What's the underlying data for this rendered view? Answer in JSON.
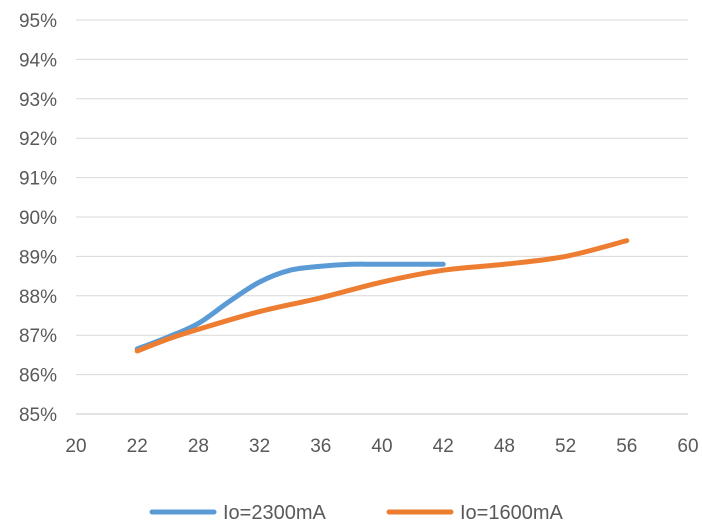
{
  "chart_data": {
    "type": "line",
    "categories": [
      "20",
      "22",
      "28",
      "32",
      "36",
      "40",
      "42",
      "48",
      "52",
      "56",
      "60"
    ],
    "ylim": [
      85,
      95
    ],
    "yticks": [
      "85%",
      "86%",
      "87%",
      "88%",
      "89%",
      "90%",
      "91%",
      "92%",
      "93%",
      "94%",
      "95%"
    ],
    "grid": true,
    "legend": "bottom",
    "series": [
      {
        "name": "Io=2300mA",
        "color": "#5B9BD5",
        "points": [
          [
            1,
            86.65
          ],
          [
            1.5,
            86.95
          ],
          [
            2,
            87.3
          ],
          [
            2.5,
            87.85
          ],
          [
            3,
            88.35
          ],
          [
            3.5,
            88.65
          ],
          [
            4,
            88.75
          ],
          [
            4.5,
            88.8
          ],
          [
            5,
            88.8
          ],
          [
            6,
            88.8
          ]
        ]
      },
      {
        "name": "Io=1600mA",
        "color": "#ED7D31",
        "points": [
          [
            1,
            86.6
          ],
          [
            1.5,
            86.9
          ],
          [
            2,
            87.15
          ],
          [
            3,
            87.6
          ],
          [
            4,
            87.95
          ],
          [
            5,
            88.35
          ],
          [
            6,
            88.65
          ],
          [
            7,
            88.8
          ],
          [
            8,
            89.0
          ],
          [
            9,
            89.4
          ]
        ]
      }
    ]
  }
}
